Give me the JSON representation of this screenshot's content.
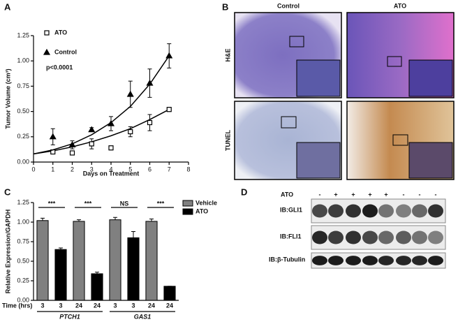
{
  "panels": {
    "a": "A",
    "b": "B",
    "c": "C",
    "d": "D"
  },
  "chart_data": [
    {
      "type": "scatter",
      "xlabel": "Days on Treatment",
      "ylabel": "Tumor Volume (cm³)",
      "annotation": "p<0.0001",
      "xlim": [
        0,
        8
      ],
      "xticks": [
        0,
        1,
        2,
        3,
        4,
        5,
        6,
        7,
        8
      ],
      "ylim": [
        0,
        1.25
      ],
      "yticks": [
        {
          "value": 0,
          "label": "0.00"
        },
        {
          "value": 0.25,
          "label": "0.25"
        },
        {
          "value": 0.5,
          "label": "0.50"
        },
        {
          "value": 0.75,
          "label": "0.75"
        },
        {
          "value": 1,
          "label": "1.00"
        },
        {
          "value": 1.25,
          "label": "1.25"
        }
      ],
      "x": [
        1,
        2,
        3,
        4,
        5,
        6,
        7
      ],
      "fit_x": [
        0,
        1,
        2,
        3,
        4,
        5,
        6,
        7
      ],
      "series": [
        {
          "name": "ATO",
          "color": "#000000",
          "marker": "square",
          "filled": false,
          "values": [
            0.1,
            0.09,
            0.18,
            0.14,
            0.3,
            0.39,
            0.52
          ],
          "errors": [
            0.02,
            0.01,
            0.05,
            0.02,
            0.05,
            0.08,
            0.02
          ],
          "fit_values": [
            0.08,
            0.11,
            0.15,
            0.2,
            0.26,
            0.33,
            0.42,
            0.52
          ]
        },
        {
          "name": "Control",
          "color": "#000000",
          "marker": "triangle",
          "filled": true,
          "values": [
            0.25,
            0.17,
            0.32,
            0.38,
            0.67,
            0.78,
            1.05
          ],
          "errors": [
            0.08,
            0.04,
            0.02,
            0.07,
            0.13,
            0.14,
            0.12
          ],
          "fit_values": [
            0.08,
            0.12,
            0.18,
            0.27,
            0.39,
            0.55,
            0.77,
            1.05
          ]
        }
      ]
    },
    {
      "type": "bar",
      "ylabel": "Relative Expression/GAPDH",
      "xlabel": "Time (hrs)",
      "ylim": [
        0,
        1.25
      ],
      "yticks": [
        {
          "value": 0,
          "label": "0.00"
        },
        {
          "value": 0.25,
          "label": "0.25"
        },
        {
          "value": 0.5,
          "label": "0.50"
        },
        {
          "value": 0.75,
          "label": "0.75"
        },
        {
          "value": 1,
          "label": "1.00"
        },
        {
          "value": 1.25,
          "label": "1.25"
        }
      ],
      "categories": [
        "3",
        "3",
        "24",
        "24",
        "3",
        "3",
        "24",
        "24"
      ],
      "groups": [
        {
          "label": "PTCH1",
          "span": [
            0,
            3
          ]
        },
        {
          "label": "GAS1",
          "span": [
            4,
            7
          ]
        }
      ],
      "significance": [
        {
          "label": "***",
          "span": [
            0,
            1
          ]
        },
        {
          "label": "***",
          "span": [
            2,
            3
          ]
        },
        {
          "label": "NS",
          "span": [
            4,
            5
          ]
        },
        {
          "label": "***",
          "span": [
            6,
            7
          ]
        }
      ],
      "series": [
        {
          "name": "Vehicle",
          "color": "#808080",
          "values": [
            1.02,
            null,
            1.01,
            null,
            1.03,
            null,
            1.01,
            null
          ],
          "errors": [
            0.03,
            null,
            0.02,
            null,
            0.03,
            null,
            0.03,
            null
          ]
        },
        {
          "name": "ATO",
          "color": "#000000",
          "values": [
            null,
            0.65,
            null,
            0.34,
            null,
            0.8,
            null,
            0.18
          ],
          "errors": [
            null,
            0.02,
            null,
            0.02,
            null,
            0.08,
            null,
            0
          ]
        }
      ]
    }
  ],
  "histology": {
    "columns": [
      "Control",
      "ATO"
    ],
    "rows": [
      "H&E",
      "TUNEL"
    ]
  },
  "blot": {
    "treatment_label": "ATO",
    "lanes": [
      "-",
      "+",
      "+",
      "+",
      "+",
      "-",
      "-",
      "-"
    ],
    "rows": [
      "IB:GLI1",
      "IB:FLI1",
      "IB:β-Tubulin"
    ]
  }
}
